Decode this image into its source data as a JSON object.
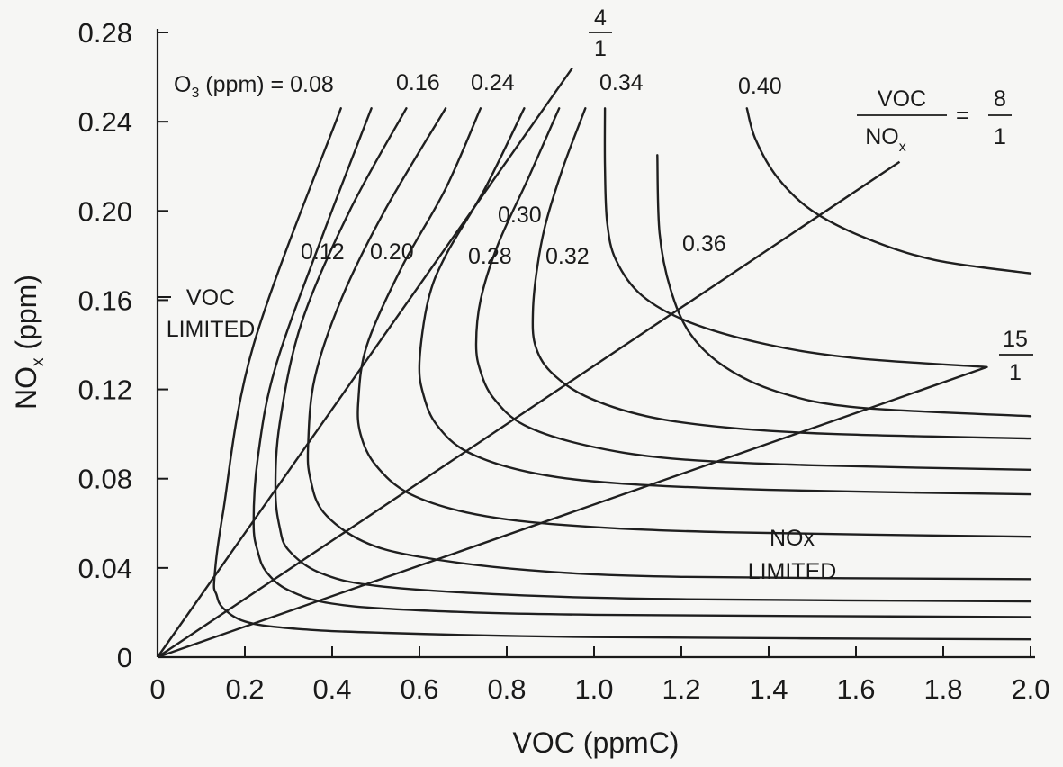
{
  "chart_data": {
    "type": "line",
    "xlabel": "VOC (ppmC)",
    "ylabel": {
      "base": "NO",
      "sub": "x",
      "unit": " (ppm)"
    },
    "xlim": [
      0,
      2.0
    ],
    "ylim": [
      0,
      0.28
    ],
    "x_ticks": [
      "0",
      "0.2",
      "0.4",
      "0.6",
      "0.8",
      "1.0",
      "1.2",
      "1.4",
      "1.6",
      "1.8",
      "2.0"
    ],
    "y_ticks": [
      "0",
      "0.04",
      "0.08",
      "0.12",
      "0.16",
      "0.20",
      "0.24",
      "0.28"
    ],
    "contour_key": {
      "base": "O",
      "sub": "3",
      "rest": " (ppm) = "
    },
    "series": [
      {
        "name": "0.08",
        "x": [
          2.0,
          1.0,
          0.5,
          0.3,
          0.2,
          0.15,
          0.135,
          0.13,
          0.15,
          0.22,
          0.42
        ],
        "y": [
          0.008,
          0.009,
          0.011,
          0.013,
          0.016,
          0.022,
          0.028,
          0.035,
          0.065,
          0.14,
          0.246
        ]
      },
      {
        "name": "0.12",
        "x": [
          2.0,
          1.0,
          0.6,
          0.4,
          0.3,
          0.25,
          0.23,
          0.22,
          0.23,
          0.27,
          0.38,
          0.49
        ],
        "y": [
          0.018,
          0.019,
          0.021,
          0.024,
          0.03,
          0.038,
          0.047,
          0.06,
          0.09,
          0.13,
          0.19,
          0.246
        ]
      },
      {
        "name": "0.16",
        "x": [
          2.0,
          1.2,
          0.8,
          0.5,
          0.37,
          0.3,
          0.28,
          0.27,
          0.28,
          0.33,
          0.44,
          0.57
        ],
        "y": [
          0.025,
          0.026,
          0.028,
          0.032,
          0.038,
          0.048,
          0.058,
          0.075,
          0.105,
          0.15,
          0.2,
          0.246
        ]
      },
      {
        "name": "0.20",
        "x": [
          2.0,
          1.2,
          0.85,
          0.6,
          0.47,
          0.38,
          0.35,
          0.345,
          0.36,
          0.42,
          0.52,
          0.66
        ],
        "y": [
          0.035,
          0.036,
          0.039,
          0.045,
          0.052,
          0.065,
          0.08,
          0.095,
          0.125,
          0.16,
          0.2,
          0.246
        ]
      },
      {
        "name": "0.24",
        "x": [
          2.0,
          1.3,
          0.95,
          0.73,
          0.58,
          0.5,
          0.465,
          0.46,
          0.48,
          0.56,
          0.66,
          0.74
        ],
        "y": [
          0.054,
          0.056,
          0.059,
          0.064,
          0.073,
          0.086,
          0.1,
          0.115,
          0.14,
          0.175,
          0.21,
          0.246
        ]
      },
      {
        "name": "0.28",
        "x": [
          2.0,
          1.4,
          1.05,
          0.85,
          0.71,
          0.64,
          0.61,
          0.6,
          0.62,
          0.66,
          0.75,
          0.84
        ],
        "y": [
          0.073,
          0.075,
          0.078,
          0.083,
          0.092,
          0.104,
          0.117,
          0.132,
          0.16,
          0.18,
          0.21,
          0.246
        ]
      },
      {
        "name": "0.30",
        "x": [
          2.0,
          1.5,
          1.18,
          0.98,
          0.84,
          0.77,
          0.74,
          0.73,
          0.74,
          0.78,
          0.85,
          0.92
        ],
        "y": [
          0.084,
          0.086,
          0.089,
          0.095,
          0.104,
          0.116,
          0.128,
          0.14,
          0.16,
          0.185,
          0.215,
          0.246
        ]
      },
      {
        "name": "0.32",
        "x": [
          2.0,
          1.55,
          1.3,
          1.12,
          0.98,
          0.9,
          0.865,
          0.86,
          0.87,
          0.89,
          0.93,
          0.98
        ],
        "y": [
          0.098,
          0.1,
          0.103,
          0.108,
          0.117,
          0.128,
          0.14,
          0.155,
          0.175,
          0.195,
          0.22,
          0.246
        ]
      },
      {
        "name": "0.34",
        "x": [
          1.9,
          1.6,
          1.4,
          1.22,
          1.11,
          1.05,
          1.03,
          1.025,
          1.025
        ],
        "y": [
          0.13,
          0.134,
          0.14,
          0.15,
          0.162,
          0.178,
          0.195,
          0.22,
          0.246
        ]
      },
      {
        "name": "0.36",
        "x": [
          2.0,
          1.6,
          1.42,
          1.3,
          1.22,
          1.175,
          1.15,
          1.145
        ],
        "y": [
          0.108,
          0.112,
          0.119,
          0.13,
          0.145,
          0.165,
          0.19,
          0.225
        ]
      },
      {
        "name": "0.40",
        "x": [
          2.0,
          1.78,
          1.62,
          1.5,
          1.42,
          1.37,
          1.35
        ],
        "y": [
          0.172,
          0.178,
          0.188,
          0.2,
          0.215,
          0.232,
          0.246
        ]
      }
    ],
    "ratio_lines": [
      {
        "num": "4",
        "den": "1",
        "x": [
          0,
          0.95
        ],
        "y": [
          0,
          0.264
        ]
      },
      {
        "num": "8",
        "den": "1",
        "x": [
          0,
          1.7
        ],
        "y": [
          0,
          0.222
        ]
      },
      {
        "num": "15",
        "den": "1",
        "x": [
          0,
          1.9
        ],
        "y": [
          0,
          0.13
        ]
      }
    ],
    "ratio_key": {
      "num": "VOC",
      "den_base": "NO",
      "den_sub": "x",
      "eq": "="
    },
    "annotations": {
      "voc_limited": [
        "VOC",
        "LIMITED"
      ],
      "nox_limited": [
        "NOx",
        "LIMITED"
      ]
    },
    "grid": false,
    "legend": "none"
  }
}
